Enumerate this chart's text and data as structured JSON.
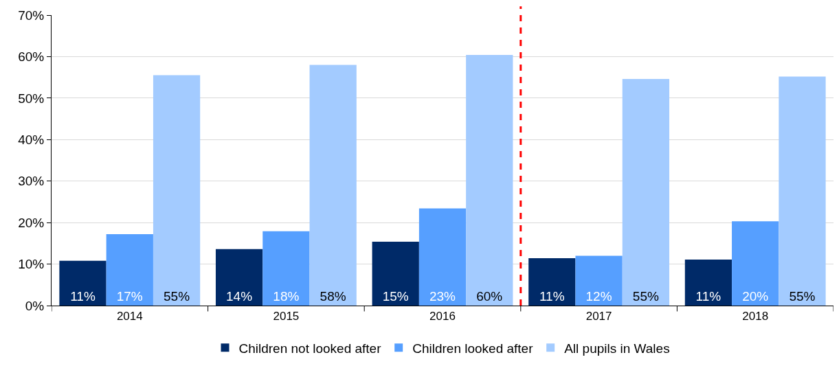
{
  "chart_data": {
    "type": "bar",
    "x": [
      2014,
      2015,
      2016,
      2017,
      2018
    ],
    "series": [
      {
        "name": "Children not looked after",
        "color": "#002a68",
        "values": [
          10.8,
          13.6,
          15.4,
          11.4,
          11.1
        ],
        "value_labels": [
          "11%",
          "14%",
          "15%",
          "11%",
          "11%"
        ]
      },
      {
        "name": "Children looked after",
        "color": "#569fff",
        "values": [
          17.2,
          17.9,
          23.4,
          12.0,
          20.3
        ],
        "value_labels": [
          "17%",
          "18%",
          "23%",
          "12%",
          "20%"
        ]
      },
      {
        "name": "All pupils in Wales",
        "color": "#a3cbff",
        "values": [
          55.5,
          58.0,
          60.4,
          54.6,
          55.2
        ],
        "value_labels": [
          "55%",
          "58%",
          "60%",
          "55%",
          "55%"
        ]
      }
    ],
    "xlim": [
      2013.5,
      2018.5
    ],
    "xticks": [
      2014,
      2015,
      2016,
      2017,
      2018
    ],
    "ylim": [
      0,
      70
    ],
    "yticks": [
      {
        "value": 0,
        "label": "0%"
      },
      {
        "value": 10,
        "label": "10%"
      },
      {
        "value": 20,
        "label": "20%"
      },
      {
        "value": 30,
        "label": "30%"
      },
      {
        "value": 40,
        "label": "40%"
      },
      {
        "value": 50,
        "label": "50%"
      },
      {
        "value": 60,
        "label": "60%"
      },
      {
        "value": 70,
        "label": "70%"
      }
    ],
    "ref_lines": [
      {
        "axis": "x",
        "value": 2016.5,
        "color": "#ff0000",
        "line_style": "dashed"
      }
    ],
    "grid": "y",
    "legend": "bottom"
  }
}
